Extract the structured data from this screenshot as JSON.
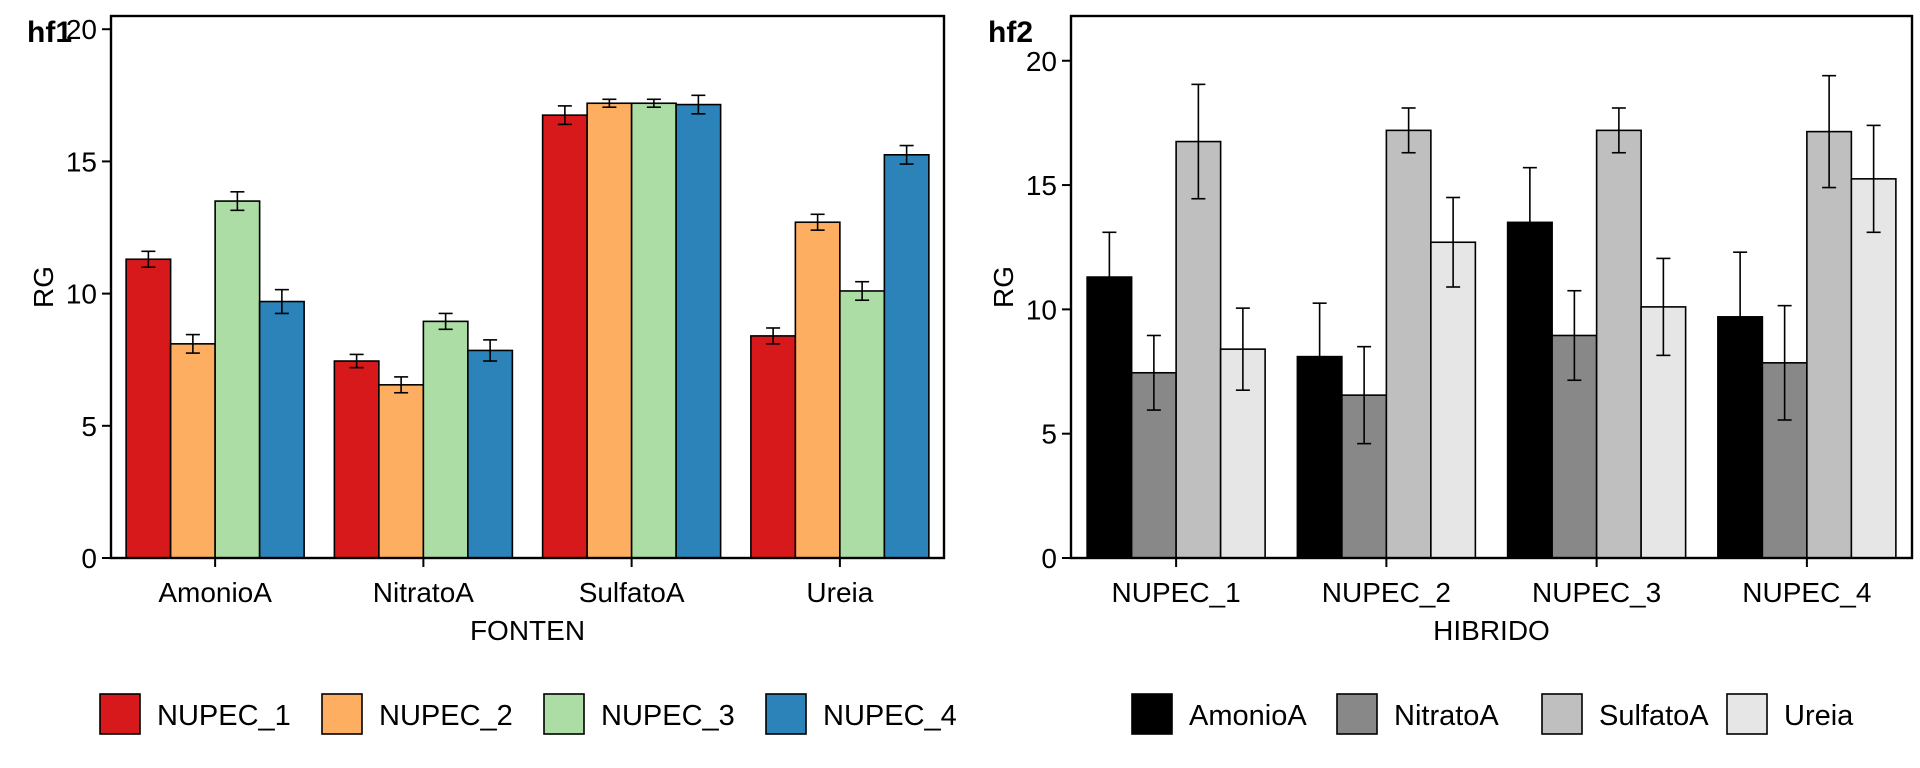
{
  "chart_data": [
    {
      "type": "bar",
      "tag": "hf1",
      "xlabel": "FONTEN",
      "ylabel": "RG",
      "ylim": [
        0,
        20.5
      ],
      "yticks": [
        0,
        5,
        10,
        15,
        20
      ],
      "categories": [
        "AmonioA",
        "NitratoA",
        "SulfatoA",
        "Ureia"
      ],
      "series": [
        {
          "name": "NUPEC_1",
          "color": "#d7191c",
          "values": [
            11.3,
            7.45,
            16.75,
            8.4
          ],
          "errors": [
            0.3,
            0.25,
            0.35,
            0.3
          ]
        },
        {
          "name": "NUPEC_2",
          "color": "#fdae61",
          "values": [
            8.1,
            6.55,
            17.2,
            12.7
          ],
          "errors": [
            0.35,
            0.3,
            0.15,
            0.3
          ]
        },
        {
          "name": "NUPEC_3",
          "color": "#abdda4",
          "values": [
            13.5,
            8.95,
            17.2,
            10.1
          ],
          "errors": [
            0.35,
            0.3,
            0.15,
            0.35
          ]
        },
        {
          "name": "NUPEC_4",
          "color": "#2b83ba",
          "values": [
            9.7,
            7.85,
            17.15,
            15.25
          ],
          "errors": [
            0.45,
            0.4,
            0.35,
            0.35
          ]
        }
      ],
      "legend": {
        "position": "bottom",
        "labels": [
          "NUPEC_1",
          "NUPEC_2",
          "NUPEC_3",
          "NUPEC_4"
        ]
      }
    },
    {
      "type": "bar",
      "tag": "hf2",
      "xlabel": "HIBRIDO",
      "ylabel": "RG",
      "ylim": [
        0,
        21.8
      ],
      "yticks": [
        0,
        5,
        10,
        15,
        20
      ],
      "categories": [
        "NUPEC_1",
        "NUPEC_2",
        "NUPEC_3",
        "NUPEC_4"
      ],
      "series": [
        {
          "name": "AmonioA",
          "color": "#000000",
          "values": [
            11.3,
            8.1,
            13.5,
            9.7
          ],
          "errors": [
            1.8,
            2.15,
            2.2,
            2.6
          ]
        },
        {
          "name": "NitratoA",
          "color": "#888888",
          "values": [
            7.45,
            6.55,
            8.95,
            7.85
          ],
          "errors": [
            1.5,
            1.95,
            1.8,
            2.3
          ]
        },
        {
          "name": "SulfatoA",
          "color": "#bfbfbf",
          "values": [
            16.75,
            17.2,
            17.2,
            17.15
          ],
          "errors": [
            2.3,
            0.9,
            0.9,
            2.25
          ]
        },
        {
          "name": "Ureia",
          "color": "#e6e6e6",
          "values": [
            8.4,
            12.7,
            10.1,
            15.25
          ],
          "errors": [
            1.65,
            1.8,
            1.95,
            2.15
          ]
        }
      ],
      "legend": {
        "position": "bottom",
        "labels": [
          "AmonioA",
          "NitratoA",
          "SulfatoA",
          "Ureia"
        ]
      }
    }
  ]
}
